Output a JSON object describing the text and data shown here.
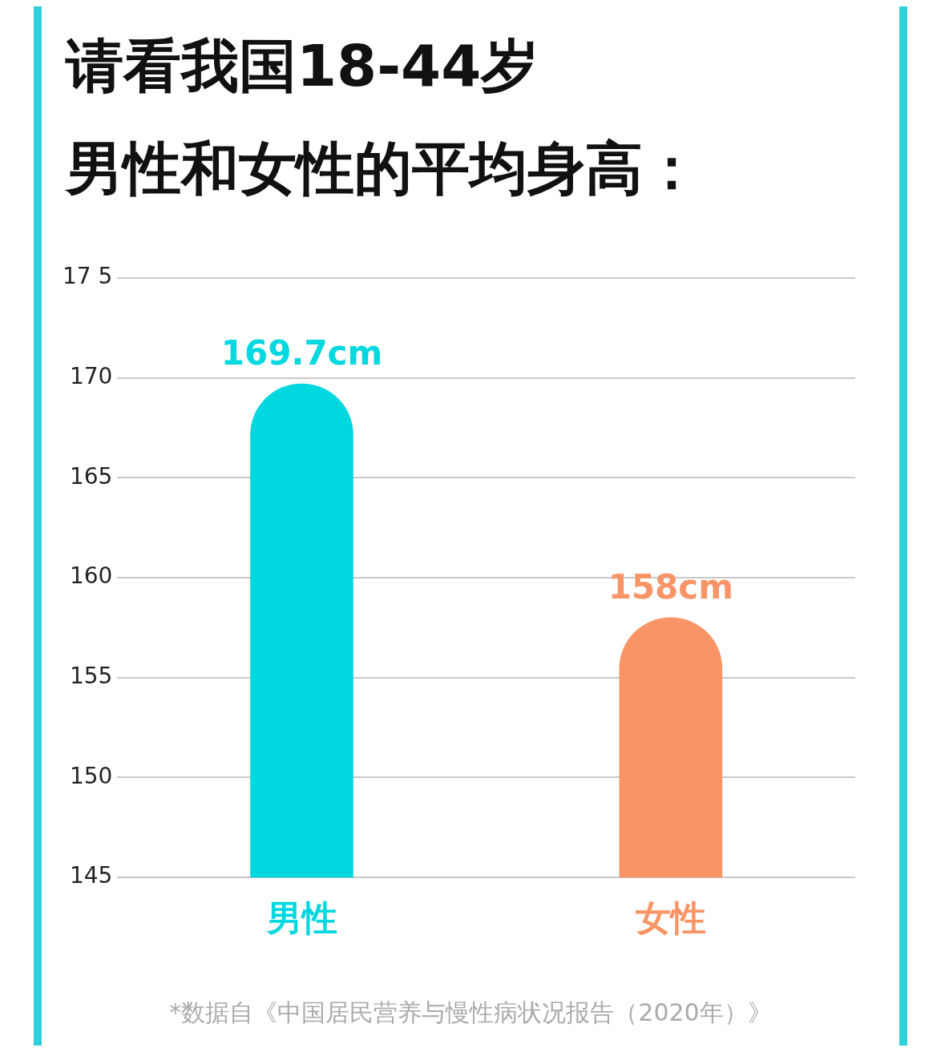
{
  "chart_data": {
    "type": "bar",
    "title": "请看我国18-44岁",
    "subtitle": "男性和女性的平均身高：",
    "categories": [
      "男性",
      "女性"
    ],
    "values": [
      169.7,
      158
    ],
    "colors": [
      "#00d8e0",
      "#f99466"
    ],
    "value_labels": [
      "169.7cm",
      "158cm"
    ],
    "ylim": [
      145,
      175
    ],
    "yticks": [
      145,
      150,
      155,
      160,
      165,
      170,
      {
        "value": 175,
        "label": "17 5"
      }
    ],
    "grid": "y",
    "annotations": [
      "*数据自《中国居民营养与慢性病状况报告（2020年）》"
    ]
  }
}
